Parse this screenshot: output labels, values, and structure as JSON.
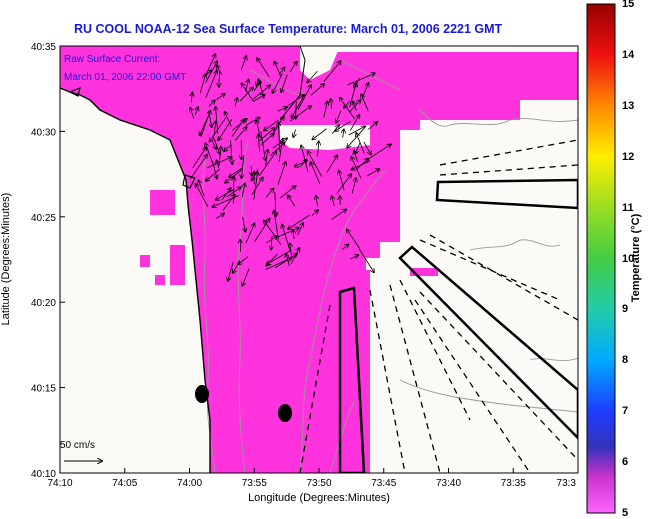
{
  "header": {
    "title": "RU COOL  NOAA-12  Sea Surface Temperature:  March 01, 2006 2221 GMT"
  },
  "map": {
    "info_line1": "Raw Surface Current:",
    "info_line2": "March 01, 2006 22:00 GMT",
    "scale_label": "50 cm/s",
    "x_axis_label": "Longitude (Degrees:Minutes)",
    "y_axis_label": "Latitude (Degrees:Minutes)",
    "x_ticks": [
      "74:10",
      "74:05",
      "74:00",
      "73:55",
      "73:50",
      "73:45",
      "73:40",
      "73:35",
      "73:3"
    ],
    "y_ticks": [
      "40:35",
      "40:30",
      "40:25",
      "40:20",
      "40:15",
      "40:10"
    ],
    "colors": {
      "sst": "#ff33dd",
      "land": "#fbfaf7",
      "coast": "#000000",
      "bathymetry": "#aaaaaa",
      "header_text": "#1a1ad6"
    }
  },
  "colorbar": {
    "title": "Temperature (°C)",
    "ticks": [
      "15",
      "14",
      "13",
      "12",
      "11",
      "10",
      "9",
      "8",
      "7",
      "6",
      "5"
    ],
    "range": [
      5,
      15
    ]
  }
}
